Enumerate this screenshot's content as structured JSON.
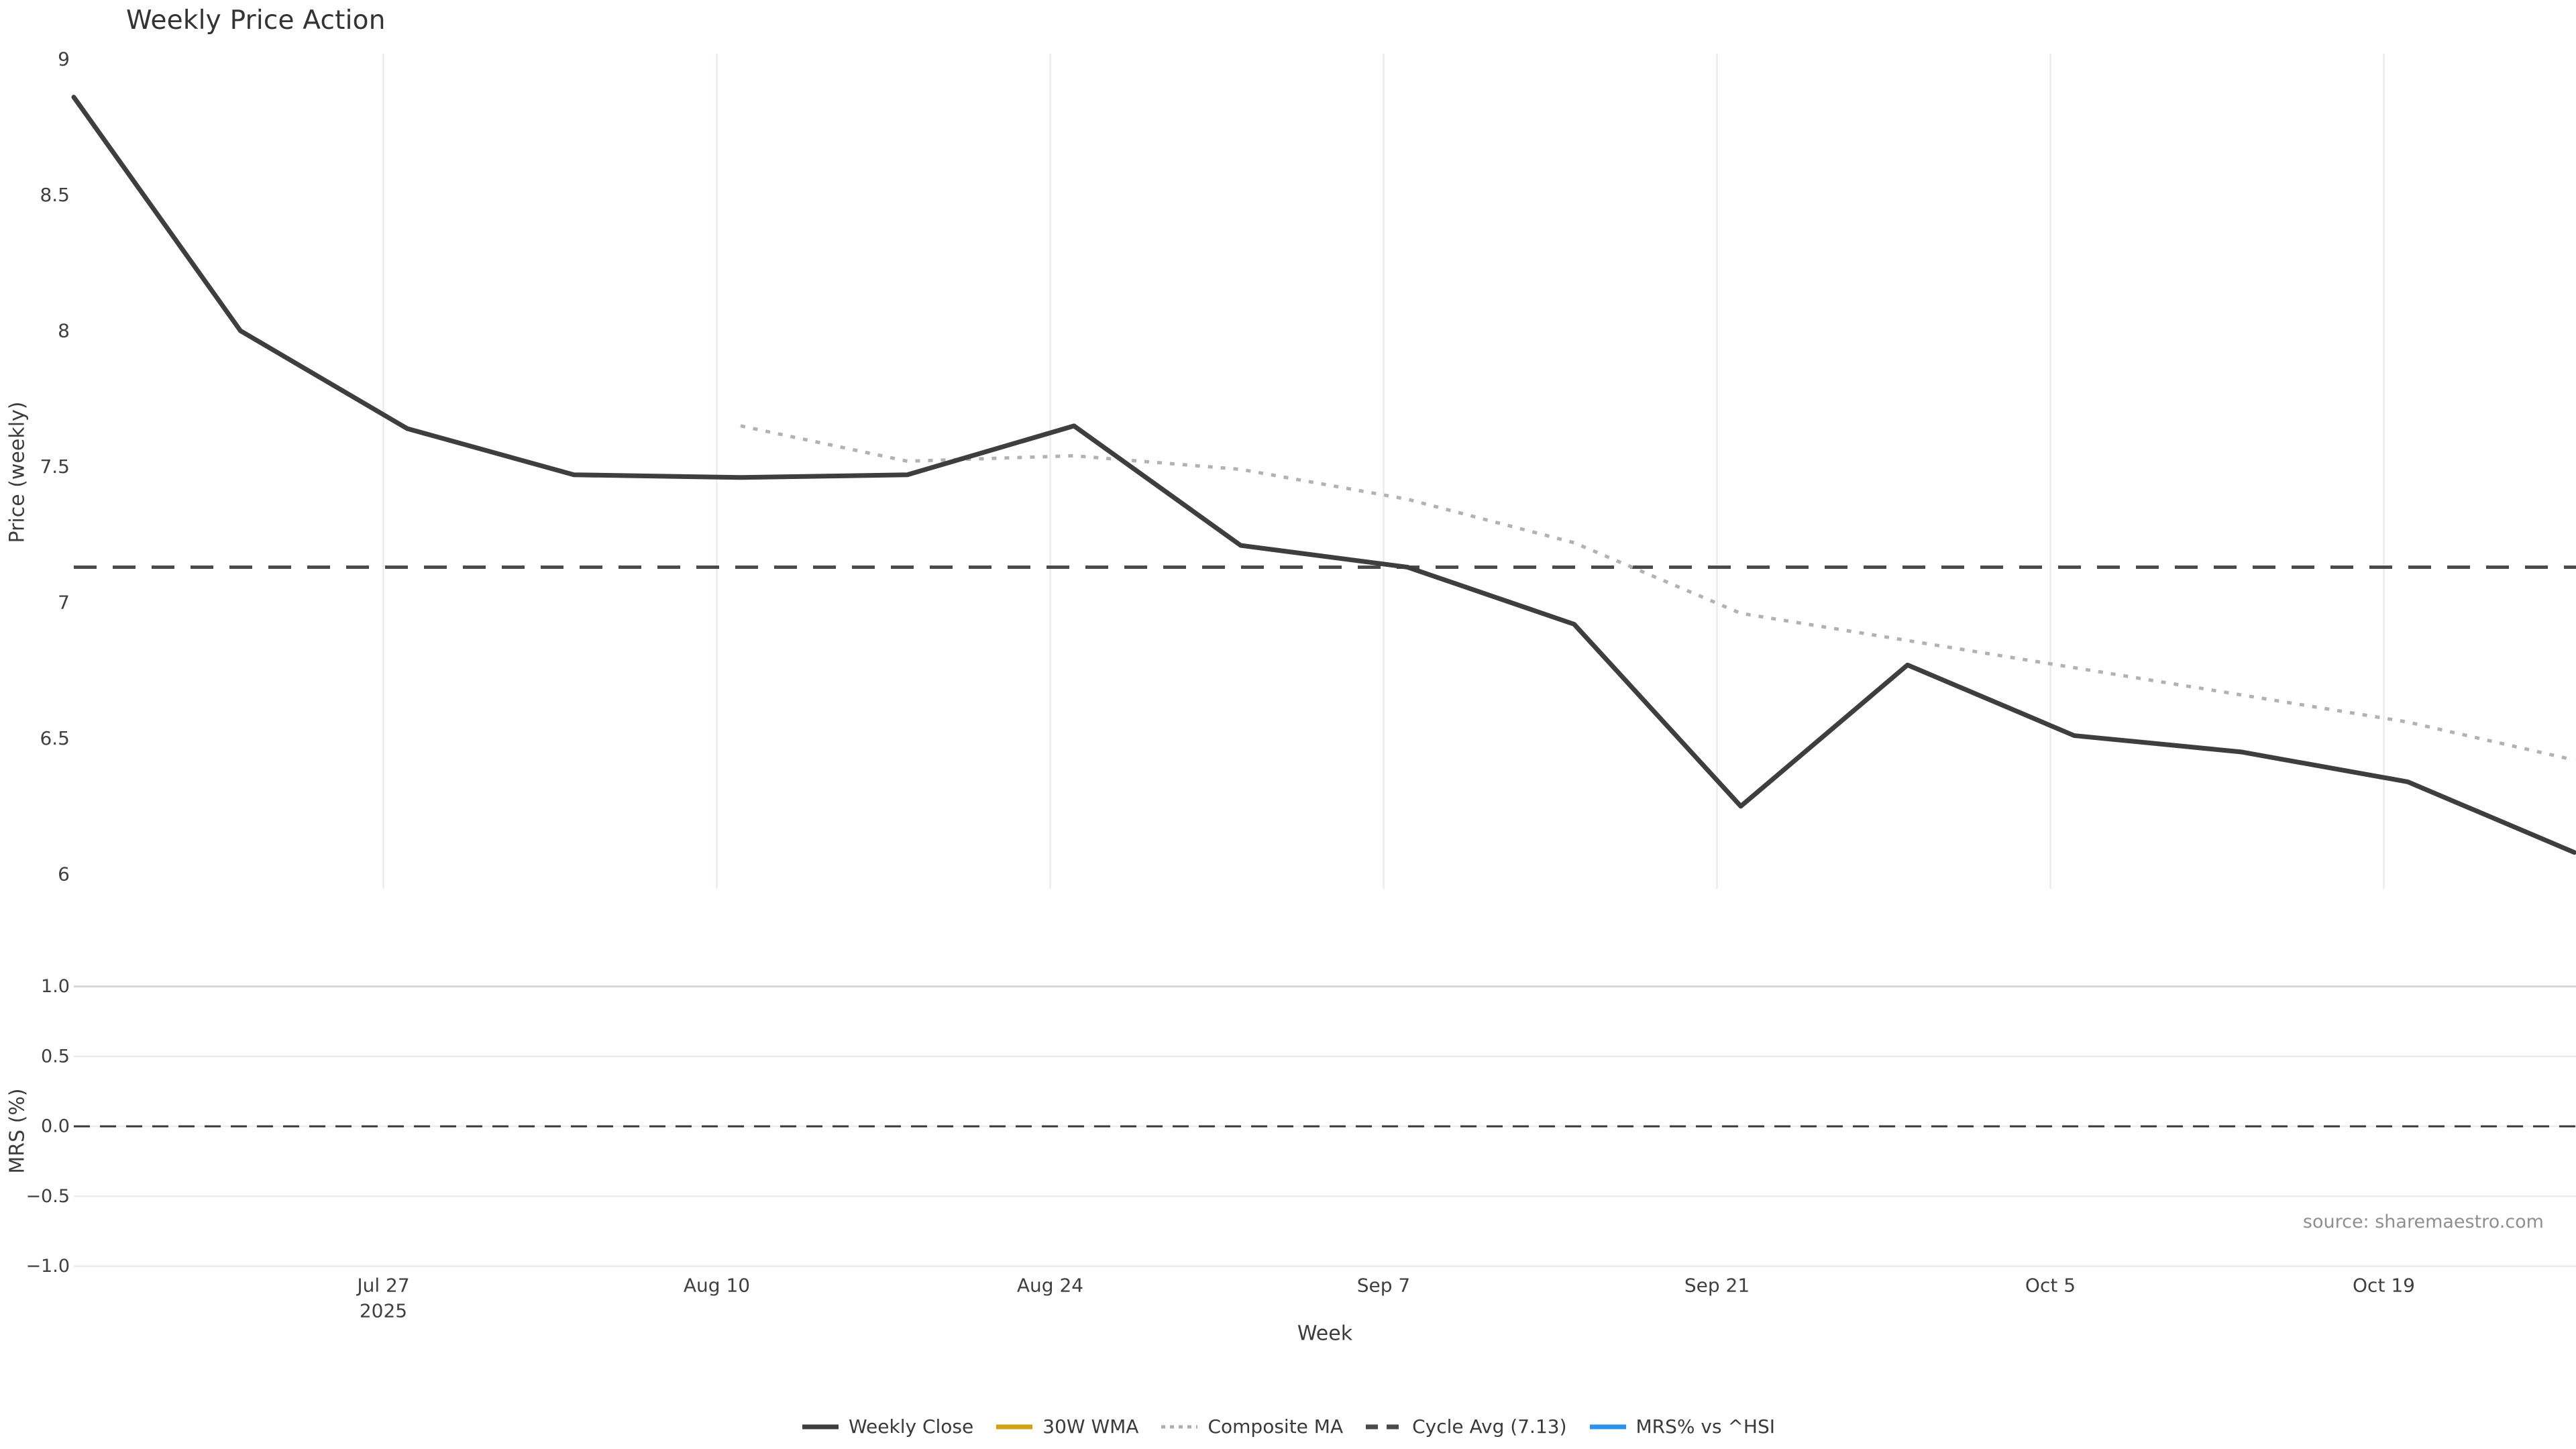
{
  "chart": {
    "title": "Weekly Price Action",
    "price_axis_title": "Price (weekly)",
    "mrs_axis_title": "MRS (%)"
  },
  "legend": {
    "items": [
      {
        "label": "Weekly Close",
        "color": "#3e3e3e",
        "style": "solid"
      },
      {
        "label": "30W WMA",
        "color": "#d4a017",
        "style": "solid"
      },
      {
        "label": "Composite MA",
        "color": "#aeaeae",
        "style": "dotted"
      },
      {
        "label": "Cycle Avg (7.13)",
        "color": "#4a4a4a",
        "style": "dashed"
      },
      {
        "label": "MRS% vs ^HSI",
        "color": "#2e93e8",
        "style": "solid"
      }
    ]
  },
  "chart_data": {
    "type": "line",
    "title": "Weekly Price Action",
    "xlabel": "Week",
    "source_note": "source: sharemaestro.com",
    "point_dates": [
      "Jul 14",
      "Jul 21",
      "Jul 28",
      "Aug 4",
      "Aug 11",
      "Aug 18",
      "Aug 25",
      "Sep 1",
      "Sep 8",
      "Sep 15",
      "Sep 22",
      "Sep 29",
      "Oct 6",
      "Oct 13",
      "Oct 20",
      "Oct 27"
    ],
    "point_days": [
      0,
      7,
      14,
      21,
      28,
      35,
      42,
      49,
      56,
      63,
      70,
      77,
      84,
      91,
      98,
      105
    ],
    "x_ticks": [
      {
        "day": 13,
        "label": "Jul 27",
        "sublabel": "2025"
      },
      {
        "day": 27,
        "label": "Aug 10",
        "sublabel": ""
      },
      {
        "day": 41,
        "label": "Aug 24",
        "sublabel": ""
      },
      {
        "day": 55,
        "label": "Sep 7",
        "sublabel": ""
      },
      {
        "day": 69,
        "label": "Sep 21",
        "sublabel": ""
      },
      {
        "day": 83,
        "label": "Oct 5",
        "sublabel": ""
      },
      {
        "day": 97,
        "label": "Oct 19",
        "sublabel": ""
      }
    ],
    "panels": [
      {
        "name": "price",
        "ylabel": "Price (weekly)",
        "ylim": [
          5.95,
          9.02
        ],
        "yticks": [
          {
            "value": 9,
            "label": "9"
          },
          {
            "value": 8.5,
            "label": "8.5"
          },
          {
            "value": 8,
            "label": "8"
          },
          {
            "value": 7.5,
            "label": "7.5"
          },
          {
            "value": 7,
            "label": "7"
          },
          {
            "value": 6.5,
            "label": "6.5"
          },
          {
            "value": 6,
            "label": "6"
          }
        ],
        "series": [
          {
            "name": "Weekly Close",
            "color": "#3e3e3e",
            "line_style": "solid",
            "start_day": 0,
            "values": [
              8.86,
              8.0,
              7.64,
              7.47,
              7.46,
              7.47,
              7.65,
              7.21,
              7.13,
              6.92,
              6.25,
              6.77,
              6.51,
              6.45,
              6.34,
              6.08
            ]
          },
          {
            "name": "30W WMA",
            "color": "#d4a017",
            "line_style": "solid",
            "start_day": 0,
            "values": []
          },
          {
            "name": "Composite MA",
            "color": "#b2b2b2",
            "line_style": "dotted",
            "start_day": 28,
            "values": [
              7.65,
              7.52,
              7.54,
              7.49,
              7.38,
              7.22,
              6.96,
              6.86,
              6.76,
              6.66,
              6.56,
              6.42
            ]
          },
          {
            "name": "Cycle Avg (7.13)",
            "color": "#4a4a4a",
            "line_style": "dashed",
            "constant_value": 7.13
          }
        ]
      },
      {
        "name": "mrs",
        "ylabel": "MRS (%)",
        "ylim": [
          -1.07,
          1.07
        ],
        "yticks": [
          {
            "value": 1.0,
            "label": "1.0"
          },
          {
            "value": 0.5,
            "label": "0.5"
          },
          {
            "value": 0.0,
            "label": "0.0"
          },
          {
            "value": -0.5,
            "label": "−0.5"
          },
          {
            "value": -1.0,
            "label": "−1.0"
          }
        ],
        "zero_line": {
          "value": 0.0,
          "style": "dashed",
          "color": "#383838"
        },
        "series": [
          {
            "name": "MRS% vs ^HSI",
            "color": "#2e93e8",
            "line_style": "solid",
            "start_day": 0,
            "values": []
          }
        ]
      }
    ],
    "grid": {
      "price_vertical": true,
      "mrs_horizontal": true,
      "vertical_color": "#e9edf1",
      "horizontal_color": "#ececec",
      "mrs_top_color": "#d6d6d6"
    },
    "legend_position": "bottom-center"
  }
}
